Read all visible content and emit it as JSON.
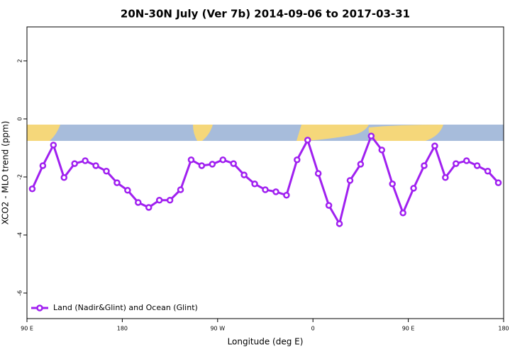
{
  "chart_data": {
    "type": "line",
    "title": "20N-30N July (Ver 7b)   2014-09-06 to 2017-03-31",
    "xlabel": "Longitude (deg E)",
    "ylabel": "XCO2 - MLO trend (ppm)",
    "xlim": [
      90,
      540
    ],
    "ylim": [
      -6.88,
      3.17
    ],
    "xticks": [
      {
        "value": 90,
        "label": "90 E"
      },
      180,
      {
        "value": 270,
        "label": "90 W"
      },
      {
        "value": 360,
        "label": "0"
      },
      {
        "value": 450,
        "label": "90 E"
      },
      {
        "value": 540,
        "label": "180"
      }
    ],
    "yticks": [
      -6,
      -4,
      -2,
      0,
      2
    ],
    "legend": "bottom-left",
    "x": [
      95,
      105,
      115,
      125,
      135,
      145,
      155,
      165,
      175,
      185,
      195,
      205,
      215,
      225,
      235,
      245,
      255,
      265,
      275,
      285,
      295,
      305,
      315,
      325,
      335,
      345,
      355,
      365,
      375,
      385,
      395,
      405,
      415,
      425,
      435,
      445,
      455,
      465,
      475,
      485,
      495,
      505,
      515,
      525,
      535
    ],
    "series": [
      {
        "name": "Land (Nadir&Glint) and Ocean (Glint)",
        "color": "#a020f0",
        "values": [
          -2.41,
          -1.61,
          -0.9,
          -2.02,
          -1.54,
          -1.44,
          -1.61,
          -1.8,
          -2.2,
          -2.46,
          -2.88,
          -3.05,
          -2.8,
          -2.8,
          -2.44,
          -1.41,
          -1.61,
          -1.56,
          -1.41,
          -1.54,
          -1.93,
          -2.24,
          -2.44,
          -2.51,
          -2.63,
          -1.41,
          -0.73,
          -1.88,
          -2.98,
          -3.61,
          -2.12,
          -1.56,
          -0.59,
          -1.07,
          -2.24,
          -3.24,
          -2.39,
          -1.61,
          -0.93,
          -2.02,
          -1.54,
          -1.44,
          -1.61,
          -1.8,
          -2.2
        ]
      }
    ]
  }
}
